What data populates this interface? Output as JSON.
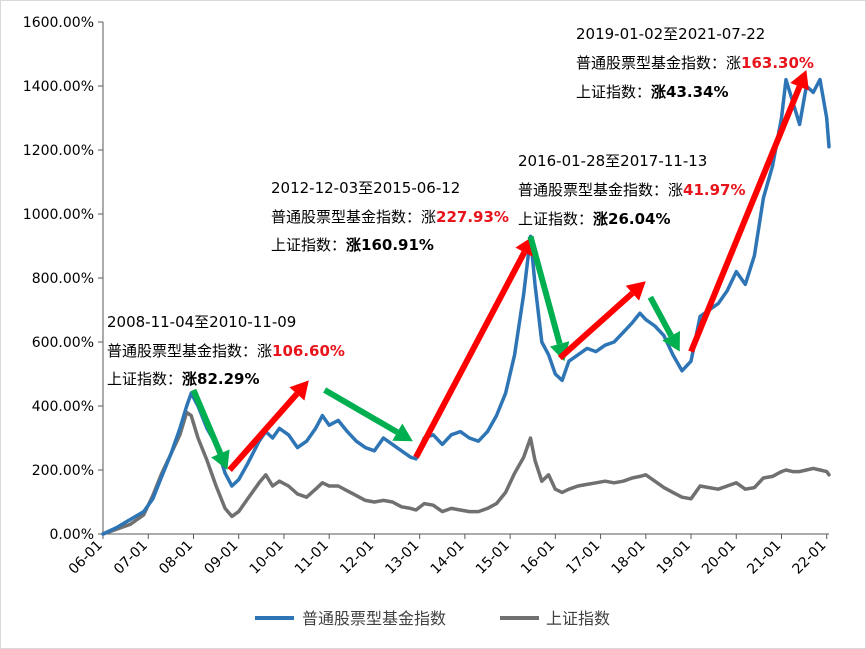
{
  "chart_data": {
    "type": "line",
    "title": "",
    "xlabel": "",
    "ylabel": "",
    "ylim": [
      0,
      1600
    ],
    "y_ticks": [
      0,
      200,
      400,
      600,
      800,
      1000,
      1200,
      1400,
      1600
    ],
    "y_tick_labels": [
      "0.00%",
      "200.00%",
      "400.00%",
      "600.00%",
      "800.00%",
      "1000.00%",
      "1200.00%",
      "1400.00%",
      "1600.00%"
    ],
    "x_range": [
      2006.0,
      2022.05
    ],
    "x_ticks": [
      2006,
      2007,
      2008,
      2009,
      2010,
      2011,
      2012,
      2013,
      2014,
      2015,
      2016,
      2017,
      2018,
      2019,
      2020,
      2021,
      2022
    ],
    "x_tick_labels": [
      "06-01",
      "07-01",
      "08-01",
      "09-01",
      "10-01",
      "11-01",
      "12-01",
      "13-01",
      "14-01",
      "15-01",
      "16-01",
      "17-01",
      "18-01",
      "19-01",
      "20-01",
      "21-01",
      "22-01"
    ],
    "grid": false,
    "legend_position": "bottom",
    "series": [
      {
        "name": "普通股票型基金指数",
        "color": "#2e75b6",
        "points": [
          [
            2006.0,
            0
          ],
          [
            2006.3,
            20
          ],
          [
            2006.6,
            45
          ],
          [
            2006.9,
            70
          ],
          [
            2007.1,
            110
          ],
          [
            2007.3,
            180
          ],
          [
            2007.5,
            250
          ],
          [
            2007.7,
            330
          ],
          [
            2007.85,
            400
          ],
          [
            2007.95,
            440
          ],
          [
            2008.1,
            400
          ],
          [
            2008.3,
            330
          ],
          [
            2008.5,
            280
          ],
          [
            2008.7,
            190
          ],
          [
            2008.85,
            150
          ],
          [
            2009.0,
            170
          ],
          [
            2009.2,
            220
          ],
          [
            2009.45,
            290
          ],
          [
            2009.6,
            320
          ],
          [
            2009.75,
            300
          ],
          [
            2009.9,
            330
          ],
          [
            2010.1,
            310
          ],
          [
            2010.3,
            270
          ],
          [
            2010.5,
            290
          ],
          [
            2010.7,
            330
          ],
          [
            2010.85,
            370
          ],
          [
            2011.0,
            340
          ],
          [
            2011.2,
            355
          ],
          [
            2011.4,
            320
          ],
          [
            2011.6,
            290
          ],
          [
            2011.8,
            270
          ],
          [
            2012.0,
            260
          ],
          [
            2012.2,
            300
          ],
          [
            2012.4,
            280
          ],
          [
            2012.6,
            260
          ],
          [
            2012.8,
            240
          ],
          [
            2012.92,
            235
          ],
          [
            2013.1,
            300
          ],
          [
            2013.3,
            310
          ],
          [
            2013.5,
            280
          ],
          [
            2013.7,
            310
          ],
          [
            2013.9,
            320
          ],
          [
            2014.1,
            300
          ],
          [
            2014.3,
            290
          ],
          [
            2014.5,
            320
          ],
          [
            2014.7,
            370
          ],
          [
            2014.9,
            440
          ],
          [
            2015.1,
            560
          ],
          [
            2015.3,
            750
          ],
          [
            2015.45,
            930
          ],
          [
            2015.55,
            780
          ],
          [
            2015.7,
            600
          ],
          [
            2015.85,
            560
          ],
          [
            2016.0,
            500
          ],
          [
            2016.15,
            480
          ],
          [
            2016.3,
            540
          ],
          [
            2016.5,
            560
          ],
          [
            2016.7,
            580
          ],
          [
            2016.9,
            570
          ],
          [
            2017.1,
            590
          ],
          [
            2017.3,
            600
          ],
          [
            2017.5,
            630
          ],
          [
            2017.7,
            660
          ],
          [
            2017.87,
            690
          ],
          [
            2018.0,
            670
          ],
          [
            2018.2,
            650
          ],
          [
            2018.4,
            620
          ],
          [
            2018.6,
            560
          ],
          [
            2018.8,
            510
          ],
          [
            2019.0,
            540
          ],
          [
            2019.2,
            680
          ],
          [
            2019.4,
            700
          ],
          [
            2019.6,
            720
          ],
          [
            2019.8,
            760
          ],
          [
            2020.0,
            820
          ],
          [
            2020.2,
            780
          ],
          [
            2020.4,
            870
          ],
          [
            2020.6,
            1050
          ],
          [
            2020.8,
            1150
          ],
          [
            2021.0,
            1300
          ],
          [
            2021.1,
            1420
          ],
          [
            2021.25,
            1350
          ],
          [
            2021.4,
            1280
          ],
          [
            2021.55,
            1400
          ],
          [
            2021.7,
            1380
          ],
          [
            2021.85,
            1420
          ],
          [
            2022.0,
            1300
          ],
          [
            2022.05,
            1210
          ]
        ]
      },
      {
        "name": "上证指数",
        "color": "#707070",
        "points": [
          [
            2006.0,
            0
          ],
          [
            2006.3,
            15
          ],
          [
            2006.6,
            30
          ],
          [
            2006.9,
            60
          ],
          [
            2007.1,
            120
          ],
          [
            2007.3,
            190
          ],
          [
            2007.5,
            250
          ],
          [
            2007.7,
            310
          ],
          [
            2007.85,
            380
          ],
          [
            2007.95,
            370
          ],
          [
            2008.1,
            300
          ],
          [
            2008.3,
            230
          ],
          [
            2008.5,
            150
          ],
          [
            2008.7,
            80
          ],
          [
            2008.85,
            55
          ],
          [
            2009.0,
            70
          ],
          [
            2009.2,
            110
          ],
          [
            2009.45,
            160
          ],
          [
            2009.6,
            185
          ],
          [
            2009.75,
            150
          ],
          [
            2009.9,
            165
          ],
          [
            2010.1,
            150
          ],
          [
            2010.3,
            125
          ],
          [
            2010.5,
            115
          ],
          [
            2010.7,
            140
          ],
          [
            2010.85,
            160
          ],
          [
            2011.0,
            150
          ],
          [
            2011.2,
            150
          ],
          [
            2011.4,
            135
          ],
          [
            2011.6,
            120
          ],
          [
            2011.8,
            105
          ],
          [
            2012.0,
            100
          ],
          [
            2012.2,
            105
          ],
          [
            2012.4,
            100
          ],
          [
            2012.6,
            85
          ],
          [
            2012.8,
            80
          ],
          [
            2012.92,
            75
          ],
          [
            2013.1,
            95
          ],
          [
            2013.3,
            90
          ],
          [
            2013.5,
            70
          ],
          [
            2013.7,
            80
          ],
          [
            2013.9,
            75
          ],
          [
            2014.1,
            70
          ],
          [
            2014.3,
            70
          ],
          [
            2014.5,
            80
          ],
          [
            2014.7,
            95
          ],
          [
            2014.9,
            130
          ],
          [
            2015.1,
            190
          ],
          [
            2015.3,
            240
          ],
          [
            2015.45,
            300
          ],
          [
            2015.55,
            230
          ],
          [
            2015.7,
            165
          ],
          [
            2015.85,
            185
          ],
          [
            2016.0,
            140
          ],
          [
            2016.15,
            130
          ],
          [
            2016.3,
            140
          ],
          [
            2016.5,
            150
          ],
          [
            2016.7,
            155
          ],
          [
            2016.9,
            160
          ],
          [
            2017.1,
            165
          ],
          [
            2017.3,
            160
          ],
          [
            2017.5,
            165
          ],
          [
            2017.7,
            175
          ],
          [
            2017.87,
            180
          ],
          [
            2018.0,
            185
          ],
          [
            2018.2,
            165
          ],
          [
            2018.4,
            145
          ],
          [
            2018.6,
            130
          ],
          [
            2018.8,
            115
          ],
          [
            2019.0,
            110
          ],
          [
            2019.2,
            150
          ],
          [
            2019.4,
            145
          ],
          [
            2019.6,
            140
          ],
          [
            2019.8,
            150
          ],
          [
            2020.0,
            160
          ],
          [
            2020.2,
            140
          ],
          [
            2020.4,
            145
          ],
          [
            2020.6,
            175
          ],
          [
            2020.8,
            180
          ],
          [
            2021.0,
            195
          ],
          [
            2021.1,
            200
          ],
          [
            2021.25,
            195
          ],
          [
            2021.4,
            195
          ],
          [
            2021.55,
            200
          ],
          [
            2021.7,
            205
          ],
          [
            2021.85,
            200
          ],
          [
            2022.0,
            195
          ],
          [
            2022.05,
            185
          ]
        ]
      }
    ],
    "trend_arrows": [
      {
        "color": "#00b050",
        "from": [
          2008.0,
          450
        ],
        "to": [
          2008.75,
          200
        ]
      },
      {
        "color": "#ff0000",
        "from": [
          2008.8,
          200
        ],
        "to": [
          2010.55,
          480
        ]
      },
      {
        "color": "#00b050",
        "from": [
          2010.9,
          450
        ],
        "to": [
          2012.85,
          290
        ]
      },
      {
        "color": "#ff0000",
        "from": [
          2012.92,
          240
        ],
        "to": [
          2015.5,
          930
        ]
      },
      {
        "color": "#00b050",
        "from": [
          2015.45,
          930
        ],
        "to": [
          2016.2,
          540
        ]
      },
      {
        "color": "#ff0000",
        "from": [
          2016.1,
          550
        ],
        "to": [
          2018.0,
          790
        ]
      },
      {
        "color": "#00b050",
        "from": [
          2018.1,
          740
        ],
        "to": [
          2018.75,
          570
        ]
      },
      {
        "color": "#ff0000",
        "from": [
          2019.0,
          570
        ],
        "to": [
          2021.55,
          1450
        ]
      }
    ],
    "annotations": [
      {
        "period": "2008-11-04至2010-11-09",
        "fund_label": "普通股票型基金指数：涨",
        "fund_value": "106.60%",
        "sh_label": "上证指数：",
        "sh_value": "涨82.29%"
      },
      {
        "period": "2012-12-03至2015-06-12",
        "fund_label": "普通股票型基金指数：涨",
        "fund_value": "227.93%",
        "sh_label": "上证指数：",
        "sh_value": "涨160.91%"
      },
      {
        "period": "2016-01-28至2017-11-13",
        "fund_label": "普通股票型基金指数：涨",
        "fund_value": "41.97%",
        "sh_label": "上证指数：",
        "sh_value": "涨26.04%"
      },
      {
        "period": "2019-01-02至2021-07-22",
        "fund_label": "普通股票型基金指数：涨",
        "fund_value": "163.30%",
        "sh_label": "上证指数：",
        "sh_value": "涨43.34%"
      }
    ]
  }
}
